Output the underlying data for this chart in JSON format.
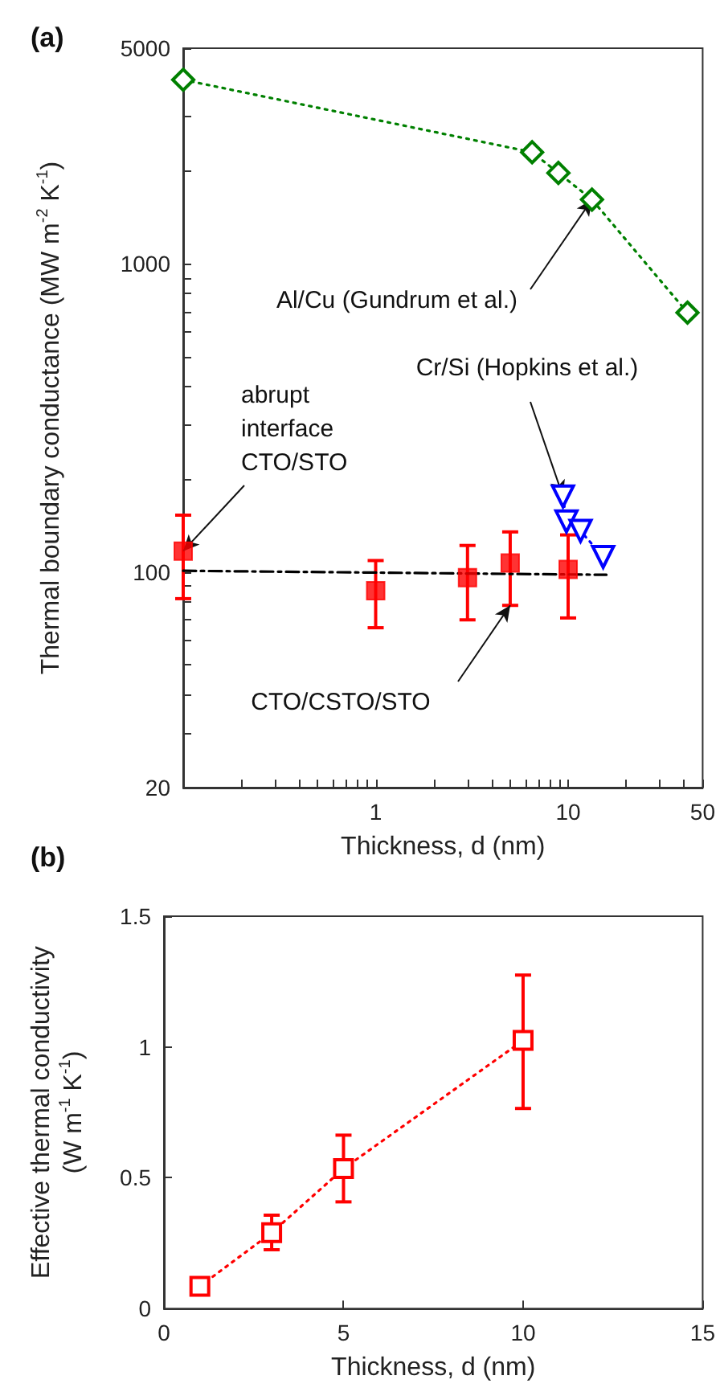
{
  "chart_data": [
    {
      "type": "scatter",
      "title": "(a)",
      "xlabel": "Thickness, d (nm)",
      "ylabel": "Thermal boundary conductance (MW m$^{-2}$ K$^{-1}$)",
      "log": "xy",
      "xlim": [
        0.1,
        50
      ],
      "ylim": [
        20,
        5000
      ],
      "grid": false,
      "xticks": [
        {
          "value": 0.2,
          "label": null
        },
        {
          "value": 0.3,
          "label": null
        },
        {
          "value": 0.4,
          "label": null
        },
        {
          "value": 0.5,
          "label": null
        },
        {
          "value": 0.6,
          "label": null
        },
        {
          "value": 0.7,
          "label": null
        },
        {
          "value": 0.8,
          "label": null
        },
        {
          "value": 0.9,
          "label": null
        },
        1,
        {
          "value": 2,
          "label": null
        },
        {
          "value": 3,
          "label": null
        },
        {
          "value": 4,
          "label": null
        },
        {
          "value": 5,
          "label": null
        },
        {
          "value": 6,
          "label": null
        },
        {
          "value": 7,
          "label": null
        },
        {
          "value": 8,
          "label": null
        },
        {
          "value": 9,
          "label": null
        },
        10,
        {
          "value": 20,
          "label": null
        },
        {
          "value": 30,
          "label": null
        },
        {
          "value": 40,
          "label": null
        },
        50
      ],
      "yticks": [
        20,
        {
          "value": 30,
          "label": null
        },
        {
          "value": 40,
          "label": null
        },
        {
          "value": 50,
          "label": null
        },
        {
          "value": 60,
          "label": null
        },
        {
          "value": 70,
          "label": null
        },
        {
          "value": 80,
          "label": null
        },
        {
          "value": 90,
          "label": null
        },
        100,
        {
          "value": 200,
          "label": null
        },
        {
          "value": 300,
          "label": null
        },
        {
          "value": 400,
          "label": null
        },
        {
          "value": 500,
          "label": null
        },
        {
          "value": 600,
          "label": null
        },
        {
          "value": 700,
          "label": null
        },
        {
          "value": 800,
          "label": null
        },
        {
          "value": 900,
          "label": null
        },
        1000,
        {
          "value": 2000,
          "label": null
        },
        {
          "value": 3000,
          "label": null
        },
        {
          "value": 4000,
          "label": null
        },
        5000
      ],
      "series": [
        {
          "type": "line",
          "color": "#008000",
          "marker": "diamond",
          "line_style": "dotted",
          "x": [
            0.1,
            6.5,
            8.9,
            13.3,
            41.7
          ],
          "values": [
            3950,
            2300,
            1970,
            1615,
            694
          ]
        },
        {
          "type": "line",
          "color": "#0000ff",
          "marker": "triangle",
          "line_style": "dotted",
          "x": [
            9.4,
            9.8,
            11.6,
            15.2
          ],
          "values": [
            176,
            146,
            136,
            112
          ]
        },
        {
          "type": "line",
          "color": "#000000",
          "marker": "none",
          "line_style": "dashed",
          "x": [
            0.1,
            15.8
          ],
          "values": [
            101,
            98
          ]
        },
        {
          "type": "scatter",
          "color": "#ff0000",
          "marker": "square",
          "x": [
            0.1,
            1,
            3,
            5,
            10
          ],
          "values": [
            117,
            87,
            96,
            107,
            102
          ],
          "errors": [
            [
              82,
              153
            ],
            [
              66,
              109
            ],
            [
              70,
              122
            ],
            [
              78,
              135
            ],
            [
              71,
              132
            ]
          ]
        }
      ],
      "annotations": [
        {
          "text": "Al/Cu (Gundrum et al.)",
          "x": 13.3,
          "y": 1615
        },
        {
          "text": "Cr/Si (Hopkins et al.)",
          "x": 9.4,
          "y": 176
        },
        {
          "text": "abrupt\ninterface\nCTO/STO",
          "x": 0.1,
          "y": 117
        },
        {
          "text": "CTO/CSTO/STO",
          "x": 5,
          "y": 78
        }
      ]
    },
    {
      "type": "line",
      "title": "(b)",
      "xlabel": "Thickness, d (nm)",
      "ylabel": "Effective thermal conductivity\n(W m$^{-1}$ K$^{-1}$)",
      "xlim": [
        0,
        15
      ],
      "ylim": [
        0,
        1.5
      ],
      "xticks": [
        0,
        5,
        10,
        15
      ],
      "yticks": [
        0,
        0.5,
        1,
        1.5
      ],
      "grid": false,
      "series": [
        {
          "color": "#ff0000",
          "marker": "square",
          "line_style": "dotted",
          "x": [
            1,
            3,
            5,
            10
          ],
          "values": [
            0.085,
            0.29,
            0.535,
            1.025
          ],
          "errors": [
            null,
            [
              0.225,
              0.357
            ],
            [
              0.408,
              0.663
            ],
            [
              0.765,
              1.275
            ]
          ]
        }
      ]
    }
  ]
}
